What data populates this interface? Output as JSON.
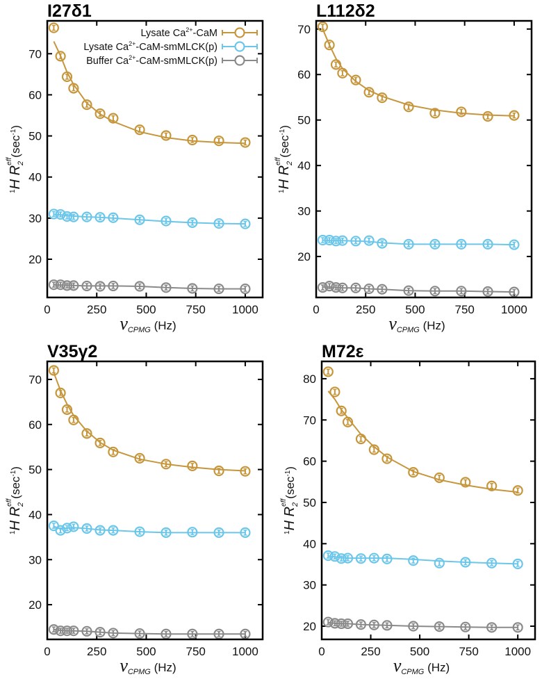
{
  "chart_data": {
    "type": "scatter",
    "xlabel_symbol": "ν",
    "xlabel_sub": "CPMG",
    "xlabel_unit": "(Hz)",
    "ylabel_pre": "1",
    "ylabel_main": "H R",
    "ylabel_sub": "2",
    "ylabel_sup": "eff",
    "ylabel_unit": "(sec",
    "ylabel_unit_sup": "-1",
    "ylabel_close": ")",
    "x": [
      33,
      67,
      100,
      133,
      200,
      267,
      333,
      467,
      600,
      733,
      867,
      1000
    ],
    "xticks": [
      0,
      250,
      500,
      750,
      1000
    ],
    "xlim": [
      0,
      1088
    ],
    "legend": {
      "placement": "top-right",
      "entries": [
        {
          "label_pre": "Lysate Ca",
          "label_sup": "2+",
          "label_post": "-CaM",
          "color": "#c6963c"
        },
        {
          "label_pre": "Lysate Ca",
          "label_sup": "2+",
          "label_post": "-CaM-smMLCK(p)",
          "color": "#6cc6ea"
        },
        {
          "label_pre": "Buffer Ca",
          "label_sup": "2+",
          "label_post": "-CaM-smMLCK(p)",
          "color": "#8a8a8a"
        }
      ]
    },
    "panels": [
      {
        "title": "I27δ1",
        "ylim": [
          10.7,
          78
        ],
        "yticks": [
          20,
          30,
          40,
          50,
          60,
          70
        ],
        "series": [
          {
            "values": [
              76.3,
              69.4,
              64.4,
              61.6,
              57.6,
              55.4,
              54.3,
              51.5,
              50.1,
              49.0,
              48.8,
              48.4
            ],
            "fit": [
              73,
              69.5,
              65.5,
              62.5,
              58,
              55.3,
              53.5,
              51,
              49.6,
              48.8,
              48.4,
              48.2
            ]
          },
          {
            "values": [
              31.0,
              30.9,
              30.4,
              30.3,
              30.3,
              30.2,
              30.1,
              29.6,
              29.3,
              28.9,
              28.7,
              28.6
            ],
            "fit": [
              30.9,
              30.8,
              30.6,
              30.5,
              30.3,
              30.2,
              30.0,
              29.6,
              29.2,
              28.9,
              28.7,
              28.6
            ]
          },
          {
            "values": [
              13.8,
              13.8,
              13.6,
              13.6,
              13.5,
              13.4,
              13.5,
              13.4,
              13.1,
              12.9,
              12.8,
              12.8
            ],
            "fit": [
              13.8,
              13.7,
              13.7,
              13.6,
              13.5,
              13.5,
              13.5,
              13.4,
              13.1,
              12.9,
              12.8,
              12.8
            ]
          }
        ]
      },
      {
        "title": "L112δ2",
        "ylim": [
          11,
          71.8
        ],
        "yticks": [
          20,
          30,
          40,
          50,
          60,
          70
        ],
        "series": [
          {
            "values": [
              70.5,
              66.5,
              62.2,
              60.3,
              58.8,
              56.1,
              54.9,
              52.9,
              51.5,
              51.8,
              50.8,
              51.0
            ],
            "fit": [
              70,
              66.5,
              63.5,
              61.3,
              58.5,
              56.5,
              55.2,
              53.3,
              52.2,
              51.5,
              51.1,
              50.9
            ]
          },
          {
            "values": [
              23.6,
              23.6,
              23.4,
              23.5,
              23.4,
              23.5,
              22.9,
              22.7,
              22.7,
              22.7,
              22.7,
              22.6
            ],
            "fit": [
              23.6,
              23.5,
              23.5,
              23.5,
              23.4,
              23.3,
              23.0,
              22.7,
              22.7,
              22.7,
              22.7,
              22.6
            ]
          },
          {
            "values": [
              13.2,
              13.5,
              13.2,
              13.1,
              13.1,
              12.9,
              12.8,
              12.5,
              12.4,
              12.4,
              12.3,
              12.2
            ],
            "fit": [
              13.3,
              13.3,
              13.2,
              13.1,
              13.1,
              12.9,
              12.8,
              12.5,
              12.4,
              12.4,
              12.3,
              12.2
            ]
          }
        ]
      },
      {
        "title": "V35γ2",
        "ylim": [
          12.3,
          74
        ],
        "yticks": [
          20,
          30,
          40,
          50,
          60,
          70
        ],
        "series": [
          {
            "values": [
              72,
              67,
              63.3,
              61,
              58,
              55.9,
              53.9,
              52.5,
              51.2,
              50.8,
              49.7,
              49.6
            ],
            "fit": [
              71.5,
              67.5,
              64.5,
              62,
              58.5,
              56,
              54.3,
              52.3,
              51.2,
              50.5,
              50,
              49.7
            ]
          },
          {
            "values": [
              37.5,
              36.5,
              37,
              37.3,
              36.9,
              36.5,
              36.5,
              36.2,
              36,
              36.1,
              36,
              36
            ],
            "fit": [
              37.4,
              36.8,
              37.0,
              37.1,
              36.9,
              36.6,
              36.5,
              36.2,
              36.0,
              36.0,
              36.0,
              36.0
            ]
          },
          {
            "values": [
              14.5,
              14.2,
              14.2,
              14.2,
              14.1,
              13.9,
              13.7,
              13.6,
              13.5,
              13.5,
              13.5,
              13.5
            ],
            "fit": [
              14.5,
              14.3,
              14.2,
              14.2,
              14.1,
              13.9,
              13.7,
              13.6,
              13.5,
              13.5,
              13.5,
              13.5
            ]
          }
        ]
      },
      {
        "title": "M72ε",
        "ylim": [
          16.8,
          84.2
        ],
        "yticks": [
          20,
          30,
          40,
          50,
          60,
          70,
          80
        ],
        "series": [
          {
            "values": [
              81.7,
              76.8,
              72.2,
              69.5,
              65.4,
              62.8,
              60.6,
              57.3,
              56,
              54.9,
              54,
              52.9
            ],
            "fit": [
              77,
              75,
              72.5,
              70.5,
              66.5,
              63.5,
              61,
              57.5,
              55.5,
              54.2,
              53.2,
              52.5
            ]
          },
          {
            "values": [
              37.1,
              36.9,
              36.4,
              36.5,
              36.4,
              36.5,
              36.3,
              35.9,
              35.3,
              35.5,
              35.3,
              35.1
            ],
            "fit": [
              37.0,
              36.8,
              36.6,
              36.5,
              36.5,
              36.5,
              36.5,
              36.2,
              35.8,
              35.5,
              35.3,
              35.1
            ]
          },
          {
            "values": [
              21,
              20.7,
              20.6,
              20.6,
              20.4,
              20.3,
              20.2,
              20,
              19.9,
              19.8,
              19.7,
              19.7
            ],
            "fit": [
              20.9,
              20.7,
              20.6,
              20.6,
              20.4,
              20.3,
              20.2,
              20.0,
              19.9,
              19.8,
              19.7,
              19.7
            ]
          }
        ]
      }
    ]
  }
}
